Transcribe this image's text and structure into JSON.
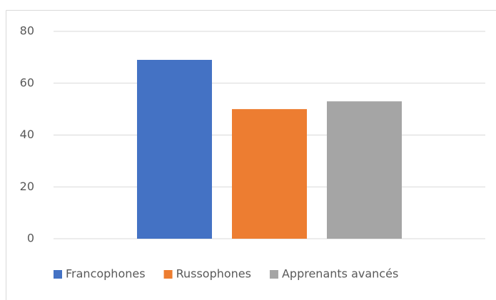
{
  "chart_data": {
    "type": "bar",
    "categories": [
      null
    ],
    "series": [
      {
        "name": "Francophones",
        "color": "#4472c4",
        "values": [
          69
        ]
      },
      {
        "name": "Russophones",
        "color": "#ed7d31",
        "values": [
          50
        ]
      },
      {
        "name": "Apprenants avancés",
        "color": "#a5a5a5",
        "values": [
          53
        ]
      }
    ],
    "ylim": [
      0,
      80
    ],
    "yticks": [
      0,
      20,
      40,
      60,
      80
    ],
    "grid": true,
    "legend": "bottom"
  }
}
